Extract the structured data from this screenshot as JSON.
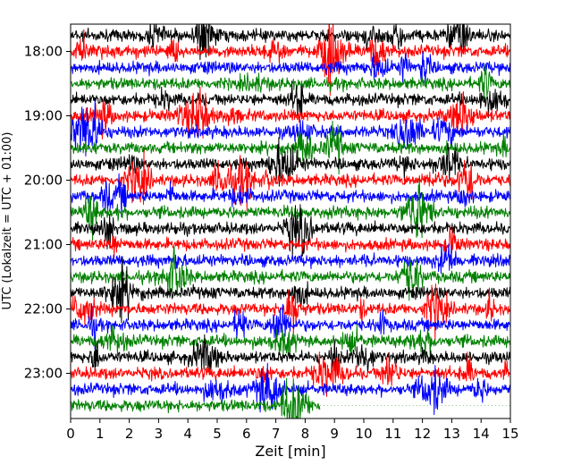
{
  "chart_data": {
    "type": "helicorder",
    "xlabel": "Zeit  [min]",
    "ylabel": "UTC (Lokalzeit = UTC + 01:00)",
    "xlim": [
      0,
      15
    ],
    "x_ticks": [
      0,
      1,
      2,
      3,
      4,
      5,
      6,
      7,
      8,
      9,
      10,
      11,
      12,
      13,
      14,
      15
    ],
    "y_tick_labels": [
      "18:00",
      "19:00",
      "20:00",
      "21:00",
      "22:00",
      "23:00"
    ],
    "start_time": "17:45",
    "trace_interval_min": 15,
    "trace_count": 24,
    "trace_colors": [
      "#000000",
      "#ff0000",
      "#0000ff",
      "#008000"
    ],
    "last_trace_data_end_min": 8.5,
    "grid": false,
    "legend": "none"
  }
}
